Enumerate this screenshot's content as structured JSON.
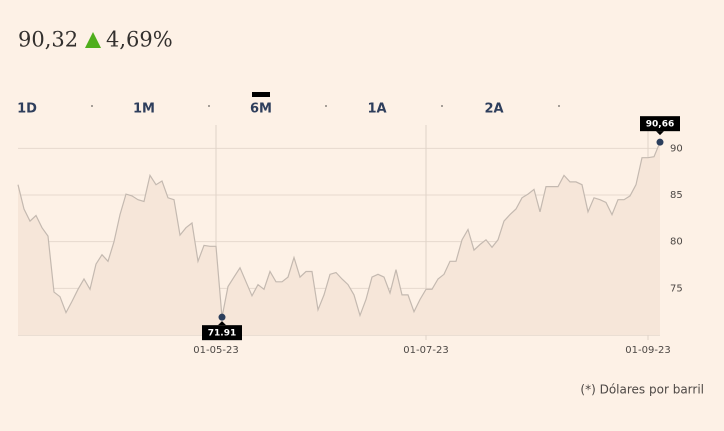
{
  "header": {
    "price": "90,32",
    "change": "4,69%"
  },
  "tabs": [
    "1D",
    "1M",
    "6M",
    "1A",
    "2A"
  ],
  "selected_tab": 2,
  "footnote": "(*) Dólares por barril",
  "chart_data": {
    "type": "line",
    "categories": [
      null,
      null,
      null,
      null,
      null,
      null,
      null,
      null,
      null,
      null,
      null,
      null,
      null,
      null,
      null,
      null,
      null,
      null,
      null,
      null,
      null,
      null,
      null,
      null,
      null,
      null,
      null,
      null,
      null,
      null,
      null,
      null,
      null,
      "01-05-23",
      null,
      null,
      null,
      null,
      null,
      null,
      null,
      null,
      null,
      null,
      null,
      null,
      null,
      null,
      null,
      null,
      null,
      null,
      null,
      null,
      null,
      null,
      null,
      null,
      null,
      null,
      null,
      null,
      null,
      null,
      null,
      null,
      null,
      null,
      "01-07-23",
      null,
      null,
      null,
      null,
      null,
      null,
      null,
      null,
      null,
      null,
      null,
      null,
      null,
      null,
      null,
      null,
      null,
      null,
      null,
      null,
      null,
      null,
      null,
      null,
      null,
      null,
      null,
      null,
      null,
      null,
      null,
      null,
      null,
      null,
      null,
      null,
      "01-09-23",
      null,
      null
    ],
    "values": [
      86.1,
      83.5,
      82.2,
      82.8,
      81.5,
      80.6,
      74.6,
      74.1,
      72.4,
      73.6,
      74.9,
      76.0,
      74.9,
      77.6,
      78.6,
      77.9,
      80.0,
      82.9,
      85.1,
      84.9,
      84.5,
      84.3,
      87.1,
      86.1,
      86.5,
      84.7,
      84.5,
      80.7,
      81.5,
      82.0,
      77.9,
      79.6,
      79.5,
      79.5,
      71.91,
      75.2,
      76.2,
      77.2,
      75.7,
      74.2,
      75.4,
      74.9,
      76.8,
      75.7,
      75.7,
      76.2,
      78.3,
      76.2,
      76.8,
      76.8,
      72.7,
      74.3,
      76.5,
      76.7,
      76.0,
      75.4,
      74.3,
      72.1,
      73.8,
      76.2,
      76.5,
      76.2,
      74.5,
      77.0,
      74.3,
      74.3,
      72.5,
      73.8,
      74.9,
      74.9,
      76.0,
      76.5,
      77.9,
      77.9,
      80.2,
      81.3,
      79.1,
      79.7,
      80.2,
      79.4,
      80.2,
      82.2,
      82.9,
      83.5,
      84.7,
      85.1,
      85.6,
      83.2,
      85.9,
      85.9,
      85.9,
      87.1,
      86.4,
      86.4,
      86.1,
      83.2,
      84.7,
      84.5,
      84.2,
      82.9,
      84.5,
      84.5,
      84.9,
      86.1,
      89.0,
      89.0,
      89.1,
      90.66
    ],
    "value_labels": [
      null,
      null,
      null,
      null,
      null,
      null,
      null,
      null,
      null,
      null,
      null,
      null,
      null,
      null,
      null,
      null,
      null,
      null,
      null,
      null,
      null,
      null,
      null,
      null,
      null,
      null,
      null,
      null,
      null,
      null,
      null,
      null,
      null,
      null,
      "71.91",
      null,
      null,
      null,
      null,
      null,
      null,
      null,
      null,
      null,
      null,
      null,
      null,
      null,
      null,
      null,
      null,
      null,
      null,
      null,
      null,
      null,
      null,
      null,
      null,
      null,
      null,
      null,
      null,
      null,
      null,
      null,
      null,
      null,
      null,
      null,
      null,
      null,
      null,
      null,
      null,
      null,
      null,
      null,
      null,
      null,
      null,
      null,
      null,
      null,
      null,
      null,
      null,
      null,
      null,
      null,
      null,
      null,
      null,
      null,
      null,
      null,
      null,
      null,
      null,
      null,
      null,
      null,
      null,
      null,
      null,
      null,
      null,
      "90,66"
    ],
    "color": "#c4b9b0",
    "ylim": [
      70,
      92.5
    ],
    "yticks": [
      75,
      80,
      85,
      90
    ],
    "grid": true
  }
}
